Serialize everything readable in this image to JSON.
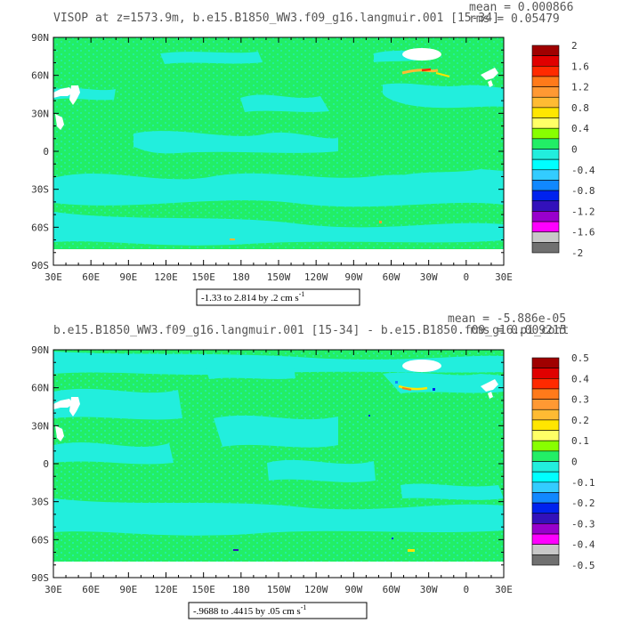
{
  "colors": {
    "ocean_zero": "#22ee66",
    "ocean_neg": "#22eedd",
    "land": "#ffffff",
    "frame": "#000000"
  },
  "colorbar_colors": [
    "#a00000",
    "#e00000",
    "#ff2a00",
    "#ff7a1a",
    "#ff9933",
    "#ffbb33",
    "#ffe600",
    "#ffff66",
    "#88ff00",
    "#22ee66",
    "#22eedd",
    "#00ffff",
    "#33ccff",
    "#1188ff",
    "#0022ee",
    "#3311bb",
    "#9900cc",
    "#ff00ff",
    "#c8c8c8",
    "#707070"
  ],
  "chart_data": [
    {
      "type": "heatmap",
      "title": "VISOP at z=1573.9m, b.e15.B1850_WW3.f09_g16.langmuir.001 [15-34]",
      "stats": {
        "mean": "mean = 0.000866",
        "rms": "rms = 0.05479"
      },
      "x_ticks": [
        "30E",
        "60E",
        "90E",
        "120E",
        "150E",
        "180",
        "150W",
        "120W",
        "90W",
        "60W",
        "30W",
        "0",
        "30E"
      ],
      "y_ticks": [
        "90N",
        "60N",
        "30N",
        "0",
        "30S",
        "60S",
        "90S"
      ],
      "xlim": [
        30,
        390
      ],
      "ylim": [
        -90,
        90
      ],
      "colorbar_labels": [
        "2",
        "1.6",
        "1.2",
        "0.8",
        "0.4",
        "0",
        "-0.4",
        "-0.8",
        "-1.2",
        "-1.6",
        "-2"
      ],
      "range_label": "-1.33 to 2.814 by .2 cm s",
      "range_exp": "-1"
    },
    {
      "type": "heatmap",
      "title": "b.e15.B1850_WW3.f09_g16.langmuir.001 [15-34] - b.e15.B1850.f09_g16.pi_cont",
      "stats": {
        "mean": "mean = -5.886e-05",
        "rms": "rms = 0.009215"
      },
      "x_ticks": [
        "30E",
        "60E",
        "90E",
        "120E",
        "150E",
        "180",
        "150W",
        "120W",
        "90W",
        "60W",
        "30W",
        "0",
        "30E"
      ],
      "y_ticks": [
        "90N",
        "60N",
        "30N",
        "0",
        "30S",
        "60S",
        "90S"
      ],
      "xlim": [
        30,
        390
      ],
      "ylim": [
        -90,
        90
      ],
      "colorbar_labels": [
        "0.5",
        "0.4",
        "0.3",
        "0.2",
        "0.1",
        "0",
        "-0.1",
        "-0.2",
        "-0.3",
        "-0.4",
        "-0.5"
      ],
      "range_label": "-.9688 to .4415 by .05 cm s",
      "range_exp": "-1"
    }
  ]
}
